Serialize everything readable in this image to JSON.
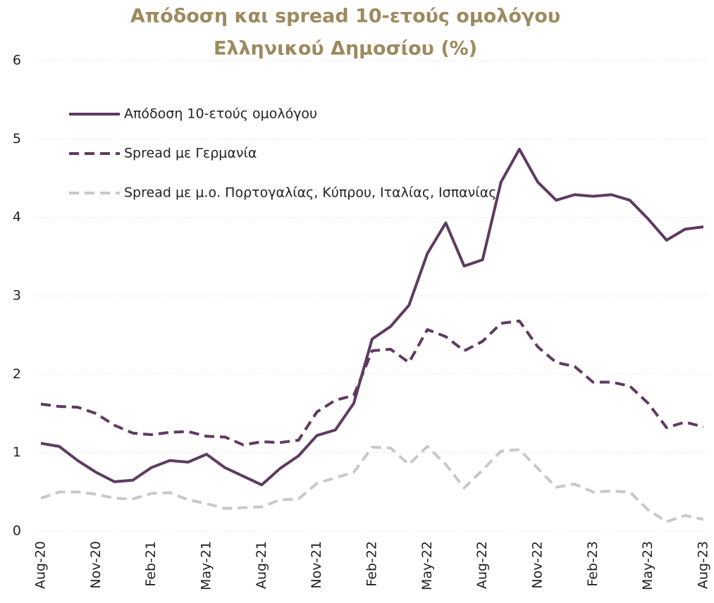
{
  "chart_data": {
    "type": "line",
    "title": [
      "Απόδοση και spread 10-ετούς ομολόγου",
      "Ελληνικού Δημοσίου (%)"
    ],
    "categories": [
      "Aug-20",
      null,
      null,
      "Nov-20",
      null,
      null,
      "Feb-21",
      null,
      null,
      "May-21",
      null,
      null,
      "Aug-21",
      null,
      null,
      "Nov-21",
      null,
      null,
      "Feb-22",
      null,
      null,
      "May-22",
      null,
      null,
      "Aug-22",
      null,
      null,
      "Nov-22",
      null,
      null,
      "Feb-23",
      null,
      null,
      "May-23",
      null,
      null,
      "Aug-23"
    ],
    "series": [
      {
        "name": "Απόδοση 10-ετούς ομολόγου",
        "color": "#5e3a60",
        "dash": "solid",
        "values": [
          1.12,
          1.08,
          0.9,
          0.75,
          0.63,
          0.65,
          0.81,
          0.9,
          0.88,
          0.98,
          0.81,
          0.7,
          0.59,
          0.8,
          0.96,
          1.22,
          1.29,
          1.63,
          2.45,
          2.61,
          2.88,
          3.54,
          3.93,
          3.38,
          3.46,
          4.45,
          4.87,
          4.45,
          4.22,
          4.29,
          4.27,
          4.29,
          4.22,
          3.98,
          3.71,
          3.85,
          3.88
        ]
      },
      {
        "name": "Spread με Γερμανία",
        "color": "#5e3a60",
        "dash": "dashed",
        "values": [
          1.62,
          1.59,
          1.58,
          1.5,
          1.35,
          1.25,
          1.23,
          1.26,
          1.27,
          1.21,
          1.2,
          1.1,
          1.14,
          1.13,
          1.16,
          1.52,
          1.67,
          1.73,
          2.3,
          2.32,
          2.15,
          2.57,
          2.48,
          2.3,
          2.42,
          2.65,
          2.68,
          2.35,
          2.15,
          2.1,
          1.9,
          1.9,
          1.85,
          1.63,
          1.32,
          1.39,
          1.33
        ]
      },
      {
        "name": "Spread με μ.ο. Πορτογαλίας, Κύπρου, Ιταλίας, Ισπανίας",
        "color": "#c8c8c8",
        "dash": "dashed",
        "values": [
          0.42,
          0.5,
          0.5,
          0.47,
          0.42,
          0.41,
          0.48,
          0.49,
          0.4,
          0.35,
          0.29,
          0.3,
          0.31,
          0.4,
          0.41,
          0.61,
          0.68,
          0.75,
          1.07,
          1.06,
          0.85,
          1.08,
          0.85,
          0.55,
          0.78,
          1.02,
          1.04,
          0.8,
          0.56,
          0.6,
          0.5,
          0.51,
          0.5,
          0.27,
          0.12,
          0.2,
          0.15
        ]
      }
    ],
    "ylim": [
      0,
      6
    ],
    "yticks": [
      0,
      1,
      2,
      3,
      4,
      5,
      6
    ],
    "grid": true,
    "legend": "top-left"
  }
}
